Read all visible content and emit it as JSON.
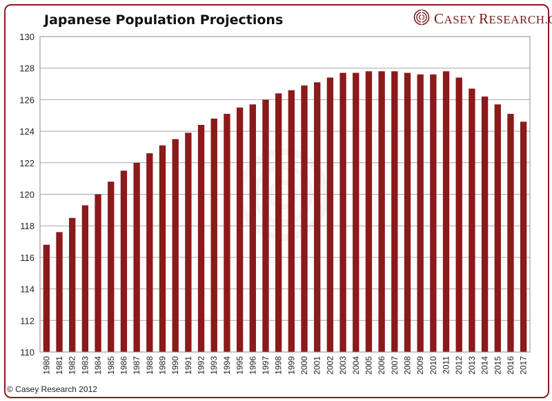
{
  "chart_data": {
    "type": "bar",
    "title": "Japanese Population Projections",
    "xlabel": "",
    "ylabel": "",
    "ylim": [
      110,
      130
    ],
    "y_ticks": [
      110,
      112,
      114,
      116,
      118,
      120,
      122,
      124,
      126,
      128,
      130
    ],
    "grid": true,
    "bar_color": "#8b1a1a",
    "categories": [
      "1980",
      "1981",
      "1982",
      "1983",
      "1984",
      "1985",
      "1986",
      "1987",
      "1988",
      "1989",
      "1990",
      "1991",
      "1992",
      "1993",
      "1994",
      "1995",
      "1996",
      "1997",
      "1998",
      "1999",
      "2000",
      "2001",
      "2002",
      "2003",
      "2004",
      "2005",
      "2006",
      "2007",
      "2008",
      "2009",
      "2010",
      "2011",
      "2012",
      "2013",
      "2014",
      "2015",
      "2016",
      "2017"
    ],
    "values": [
      116.8,
      117.6,
      118.5,
      119.3,
      120.0,
      120.8,
      121.5,
      122.0,
      122.6,
      123.1,
      123.5,
      123.9,
      124.4,
      124.8,
      125.1,
      125.5,
      125.7,
      126.0,
      126.4,
      126.6,
      126.9,
      127.1,
      127.4,
      127.7,
      127.7,
      127.8,
      127.8,
      127.8,
      127.7,
      127.6,
      127.6,
      127.8,
      127.4,
      126.7,
      126.2,
      125.7,
      125.1,
      124.6
    ]
  },
  "logo": {
    "initial": "C",
    "word1": "ASEY",
    "initial2": "R",
    "word2": "ESEARCH.COM",
    "icon": "casey-spiral-logo-icon"
  },
  "footer": {
    "copyright": "© Casey Research 2012"
  }
}
